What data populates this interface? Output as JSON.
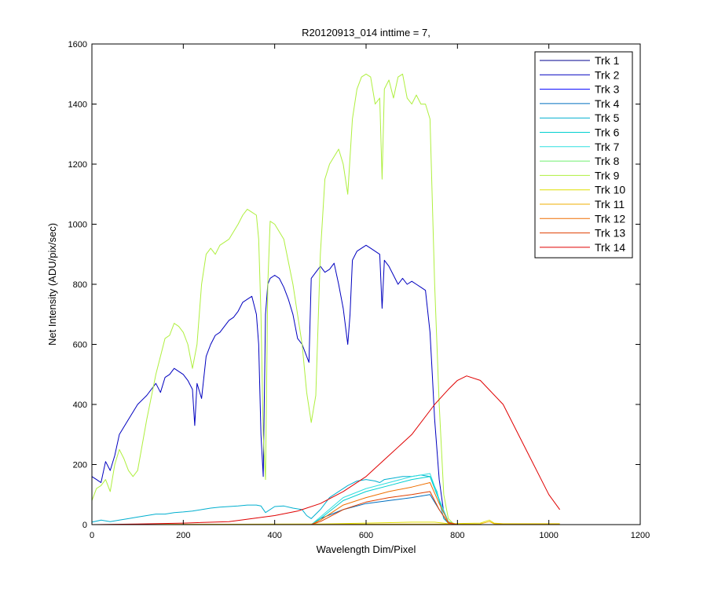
{
  "chart_data": {
    "type": "line",
    "title": "R20120913_014 inttime = 7,",
    "xlabel": "Wavelength Dim/Pixel",
    "ylabel": "Net Intensity (ADU/pix/sec)",
    "xlim": [
      0,
      1200
    ],
    "ylim": [
      0,
      1600
    ],
    "xticks": [
      "0",
      "200",
      "400",
      "600",
      "800",
      "1000",
      "1200"
    ],
    "yticks": [
      "0",
      "200",
      "400",
      "600",
      "800",
      "1000",
      "1200",
      "1400",
      "1600"
    ],
    "grid": false,
    "legend_position": "top-right",
    "series": [
      {
        "name": "Trk 1",
        "color": "#00008f",
        "x": [],
        "y": []
      },
      {
        "name": "Trk 2",
        "color": "#0000bf",
        "x": [
          0,
          10,
          20,
          30,
          40,
          50,
          60,
          80,
          100,
          120,
          140,
          150,
          160,
          170,
          180,
          190,
          200,
          210,
          220,
          225,
          230,
          240,
          250,
          260,
          270,
          280,
          290,
          300,
          310,
          320,
          330,
          340,
          350,
          360,
          365,
          370,
          375,
          380,
          385,
          390,
          400,
          410,
          420,
          430,
          440,
          450,
          460,
          470,
          475,
          480,
          490,
          500,
          510,
          520,
          530,
          540,
          550,
          560,
          565,
          570,
          580,
          590,
          600,
          610,
          620,
          630,
          635,
          640,
          650,
          660,
          670,
          680,
          690,
          700,
          710,
          720,
          730,
          740,
          745,
          750,
          760,
          770,
          780,
          790,
          800,
          850,
          900,
          1000,
          1024
        ],
        "y": [
          160,
          150,
          140,
          210,
          180,
          230,
          300,
          350,
          400,
          430,
          470,
          440,
          490,
          500,
          520,
          510,
          500,
          480,
          450,
          330,
          470,
          420,
          560,
          600,
          630,
          640,
          660,
          680,
          690,
          710,
          740,
          750,
          760,
          700,
          600,
          300,
          160,
          700,
          800,
          820,
          830,
          820,
          790,
          750,
          700,
          620,
          600,
          560,
          540,
          820,
          840,
          860,
          840,
          850,
          870,
          800,
          720,
          600,
          700,
          880,
          910,
          920,
          930,
          920,
          910,
          900,
          720,
          880,
          860,
          830,
          800,
          820,
          800,
          810,
          800,
          790,
          780,
          640,
          500,
          350,
          150,
          40,
          10,
          0,
          0,
          0,
          0,
          0,
          0
        ]
      },
      {
        "name": "Trk 3",
        "color": "#0000ff",
        "x": [],
        "y": []
      },
      {
        "name": "Trk 4",
        "color": "#006fbf",
        "x": [
          0,
          380,
          480,
          500,
          550,
          600,
          650,
          700,
          740,
          760,
          780,
          800,
          1024
        ],
        "y": [
          0,
          0,
          0,
          20,
          50,
          70,
          80,
          90,
          100,
          50,
          5,
          0,
          0
        ]
      },
      {
        "name": "Trk 5",
        "color": "#00afcf",
        "x": [
          0,
          20,
          40,
          60,
          80,
          100,
          120,
          140,
          160,
          180,
          200,
          220,
          240,
          260,
          280,
          300,
          320,
          340,
          360,
          370,
          380,
          400,
          420,
          440,
          460,
          470,
          480,
          500,
          520,
          540,
          560,
          580,
          600,
          620,
          630,
          640,
          660,
          680,
          700,
          720,
          740,
          755,
          770,
          780,
          800,
          1024
        ],
        "y": [
          8,
          15,
          10,
          15,
          20,
          25,
          30,
          35,
          35,
          40,
          42,
          45,
          50,
          55,
          58,
          60,
          62,
          65,
          65,
          62,
          40,
          60,
          62,
          55,
          50,
          30,
          20,
          50,
          90,
          110,
          130,
          145,
          150,
          145,
          140,
          150,
          155,
          160,
          160,
          165,
          160,
          110,
          20,
          5,
          0,
          0
        ]
      },
      {
        "name": "Trk 6",
        "color": "#00cfcf",
        "x": [
          0,
          480,
          500,
          550,
          600,
          650,
          700,
          740,
          760,
          780,
          800,
          1024
        ],
        "y": [
          0,
          0,
          20,
          80,
          110,
          130,
          150,
          160,
          80,
          10,
          0,
          0
        ]
      },
      {
        "name": "Trk 7",
        "color": "#2fdfdf",
        "x": [
          0,
          480,
          500,
          550,
          600,
          650,
          700,
          740,
          760,
          780,
          800,
          1024
        ],
        "y": [
          0,
          0,
          25,
          90,
          120,
          140,
          160,
          170,
          85,
          10,
          0,
          0
        ]
      },
      {
        "name": "Trk 8",
        "color": "#6fef6f",
        "x": [],
        "y": []
      },
      {
        "name": "Trk 9",
        "color": "#afef3f",
        "x": [
          0,
          10,
          20,
          30,
          40,
          50,
          60,
          70,
          80,
          90,
          100,
          120,
          140,
          160,
          170,
          180,
          190,
          200,
          210,
          220,
          225,
          230,
          240,
          250,
          260,
          270,
          280,
          300,
          320,
          330,
          340,
          350,
          360,
          365,
          370,
          375,
          380,
          385,
          390,
          400,
          420,
          440,
          460,
          470,
          480,
          490,
          500,
          510,
          520,
          540,
          550,
          560,
          570,
          580,
          590,
          600,
          610,
          620,
          630,
          635,
          640,
          650,
          660,
          670,
          680,
          690,
          700,
          710,
          720,
          730,
          740,
          750,
          760,
          770,
          780,
          790,
          800,
          850,
          900,
          1000,
          1024
        ],
        "y": [
          80,
          120,
          130,
          150,
          110,
          200,
          250,
          220,
          180,
          160,
          180,
          350,
          500,
          620,
          630,
          670,
          660,
          640,
          600,
          520,
          560,
          600,
          800,
          900,
          920,
          900,
          930,
          950,
          1000,
          1030,
          1050,
          1040,
          1030,
          950,
          700,
          300,
          150,
          800,
          1010,
          1000,
          950,
          800,
          600,
          440,
          340,
          430,
          900,
          1150,
          1200,
          1250,
          1200,
          1100,
          1350,
          1450,
          1490,
          1500,
          1490,
          1400,
          1420,
          1150,
          1450,
          1480,
          1420,
          1490,
          1500,
          1420,
          1400,
          1430,
          1400,
          1400,
          1350,
          800,
          400,
          100,
          20,
          5,
          0,
          0,
          0,
          0,
          0
        ]
      },
      {
        "name": "Trk 10",
        "color": "#dfdf00",
        "x": [
          0,
          500,
          600,
          700,
          750,
          780,
          850,
          870,
          880,
          900,
          1024
        ],
        "y": [
          0,
          2,
          5,
          8,
          8,
          3,
          5,
          15,
          5,
          3,
          3
        ]
      },
      {
        "name": "Trk 11",
        "color": "#efaf00",
        "x": [
          0,
          850,
          870,
          880,
          900,
          1024
        ],
        "y": [
          0,
          2,
          10,
          3,
          2,
          2
        ]
      },
      {
        "name": "Trk 12",
        "color": "#ef6f00",
        "x": [
          0,
          480,
          500,
          550,
          600,
          650,
          700,
          740,
          760,
          780,
          800,
          1024
        ],
        "y": [
          0,
          0,
          15,
          65,
          90,
          110,
          125,
          140,
          70,
          8,
          0,
          0
        ]
      },
      {
        "name": "Trk 13",
        "color": "#df3f00",
        "x": [
          0,
          480,
          500,
          550,
          600,
          650,
          700,
          740,
          760,
          780,
          800,
          1024
        ],
        "y": [
          0,
          0,
          10,
          50,
          75,
          90,
          100,
          110,
          50,
          5,
          0,
          0
        ]
      },
      {
        "name": "Trk 14",
        "color": "#df0000",
        "x": [
          0,
          100,
          200,
          300,
          400,
          450,
          500,
          550,
          600,
          650,
          700,
          750,
          780,
          800,
          820,
          850,
          900,
          950,
          1000,
          1024
        ],
        "y": [
          0,
          2,
          5,
          10,
          30,
          45,
          70,
          110,
          160,
          230,
          300,
          400,
          450,
          480,
          495,
          480,
          400,
          250,
          100,
          50
        ]
      }
    ]
  }
}
